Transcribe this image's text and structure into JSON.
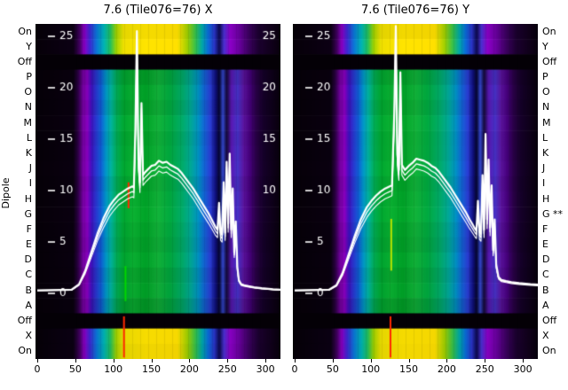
{
  "titles": {
    "left": "7.6 (Tile076=76) X",
    "right": "7.6 (Tile076=76) Y"
  },
  "axis": {
    "ylabel": "Dipole"
  },
  "row_labels_left": [
    "On",
    "Y",
    "Off",
    "P",
    "O",
    "N",
    "M",
    "L",
    "K",
    "J",
    "I",
    "H",
    "G",
    "F",
    "E",
    "D",
    "C",
    "B",
    "A",
    "Off",
    "X",
    "On"
  ],
  "row_labels_right": [
    "On",
    "Y",
    "Off",
    "P",
    "O",
    "N",
    "M",
    "L",
    "K",
    "J",
    "I",
    "H",
    "G **",
    "F",
    "E",
    "D",
    "C",
    "B",
    "A",
    "Off",
    "X",
    "On"
  ],
  "colormap": {
    "body": [
      [
        0,
        "#060008"
      ],
      [
        0.155,
        "#0a0010"
      ],
      [
        0.175,
        "#30004a"
      ],
      [
        0.195,
        "#7a00a8"
      ],
      [
        0.212,
        "#8800c0"
      ],
      [
        0.228,
        "#4010c0"
      ],
      [
        0.248,
        "#2838d0"
      ],
      [
        0.268,
        "#1060d8"
      ],
      [
        0.288,
        "#0098c8"
      ],
      [
        0.308,
        "#00b4a0"
      ],
      [
        0.332,
        "#00ae56"
      ],
      [
        0.362,
        "#00a830"
      ],
      [
        0.4,
        "#0bb232"
      ],
      [
        0.45,
        "#00a428"
      ],
      [
        0.5,
        "#12b43a"
      ],
      [
        0.55,
        "#00aa40"
      ],
      [
        0.6,
        "#00ac6a"
      ],
      [
        0.635,
        "#00a898"
      ],
      [
        0.665,
        "#0092c4"
      ],
      [
        0.69,
        "#1464d8"
      ],
      [
        0.715,
        "#2a3cd4"
      ],
      [
        0.735,
        "#101080"
      ],
      [
        0.75,
        "#060630"
      ],
      [
        0.765,
        "#3448d0"
      ],
      [
        0.78,
        "#140a3c"
      ],
      [
        0.8,
        "#5a18b4"
      ],
      [
        0.825,
        "#4632c8"
      ],
      [
        0.85,
        "#5c14a0"
      ],
      [
        0.875,
        "#46007c"
      ],
      [
        0.9,
        "#2a0048"
      ],
      [
        0.93,
        "#16002a"
      ],
      [
        1,
        "#08000c"
      ]
    ],
    "bright": [
      [
        0,
        "#060008"
      ],
      [
        0.155,
        "#0c0014"
      ],
      [
        0.18,
        "#40005e"
      ],
      [
        0.2,
        "#8c00c8"
      ],
      [
        0.222,
        "#3c28d2"
      ],
      [
        0.25,
        "#0a78d8"
      ],
      [
        0.28,
        "#00b4b4"
      ],
      [
        0.305,
        "#20c060"
      ],
      [
        0.33,
        "#a0d400"
      ],
      [
        0.36,
        "#f0e000"
      ],
      [
        0.45,
        "#ffe400"
      ],
      [
        0.58,
        "#ffe000"
      ],
      [
        0.62,
        "#a0d000"
      ],
      [
        0.655,
        "#30c050"
      ],
      [
        0.68,
        "#00a8a8"
      ],
      [
        0.705,
        "#0a6cd8"
      ],
      [
        0.73,
        "#2a34c8"
      ],
      [
        0.75,
        "#0c0a50"
      ],
      [
        0.77,
        "#4a30d0"
      ],
      [
        0.795,
        "#8c00c8"
      ],
      [
        0.83,
        "#6a00a0"
      ],
      [
        0.87,
        "#3c0060"
      ],
      [
        0.91,
        "#1c0030"
      ],
      [
        1,
        "#08000c"
      ]
    ],
    "off_band": "#040006",
    "trace": "#ffffff"
  },
  "chart_data": [
    {
      "type": "heatmap",
      "title": "7.6 (Tile076=76) X",
      "x_range": [
        0,
        320
      ],
      "x_ticks": [
        0,
        50,
        100,
        150,
        200,
        250,
        300
      ],
      "value_ticks": [
        25,
        20,
        15,
        10,
        5,
        0
      ],
      "value_ticks_right": [
        25,
        20,
        15,
        10
      ],
      "off_rows": [
        2,
        19
      ],
      "bright_rows": [
        0,
        1,
        20,
        21
      ],
      "row_shade": [
        0.04,
        0,
        0,
        0.1,
        0.03,
        0.07,
        0,
        0.05,
        0.02,
        0,
        0.06,
        0.02,
        0,
        0.04,
        0.07,
        0.02,
        0.09,
        0.05,
        0.14,
        0,
        0.03,
        0.06
      ],
      "features": [
        {
          "x": 120,
          "row0": 10.4,
          "row1": 12.1,
          "color": "#ff2800",
          "w": 2
        },
        {
          "x": 116,
          "row0": 15.9,
          "row1": 18.2,
          "color": "#00d800",
          "w": 2
        },
        {
          "x": 114,
          "row0": 19.2,
          "row1": 21.9,
          "color": "#ff2800",
          "w": 2
        }
      ],
      "overlay_line": {
        "points": [
          [
            0,
            0.3
          ],
          [
            45,
            0.35
          ],
          [
            55,
            0.9
          ],
          [
            63,
            2.2
          ],
          [
            71,
            4.0
          ],
          [
            79,
            5.8
          ],
          [
            87,
            7.3
          ],
          [
            95,
            8.5
          ],
          [
            101,
            9.1
          ],
          [
            107,
            9.6
          ],
          [
            113,
            9.9
          ],
          [
            119,
            10.2
          ],
          [
            125,
            10.4
          ],
          [
            127,
            10.3
          ],
          [
            129,
            16.0
          ],
          [
            131,
            25.5
          ],
          [
            133,
            13.0
          ],
          [
            135,
            10.8
          ],
          [
            137,
            18.5
          ],
          [
            139,
            11.5
          ],
          [
            142,
            11.8
          ],
          [
            146,
            12.1
          ],
          [
            150,
            12.4
          ],
          [
            155,
            12.5
          ],
          [
            160,
            12.9
          ],
          [
            165,
            12.7
          ],
          [
            170,
            12.8
          ],
          [
            175,
            12.5
          ],
          [
            180,
            12.3
          ],
          [
            185,
            12.1
          ],
          [
            190,
            11.7
          ],
          [
            195,
            11.2
          ],
          [
            200,
            10.7
          ],
          [
            205,
            10.2
          ],
          [
            210,
            9.6
          ],
          [
            215,
            9.0
          ],
          [
            220,
            8.4
          ],
          [
            225,
            7.8
          ],
          [
            230,
            7.1
          ],
          [
            234,
            6.5
          ],
          [
            237,
            6.2
          ],
          [
            239,
            8.8
          ],
          [
            241,
            5.9
          ],
          [
            243,
            5.7
          ],
          [
            245,
            10.8
          ],
          [
            247,
            5.9
          ],
          [
            249,
            12.8
          ],
          [
            251,
            6.8
          ],
          [
            253,
            13.6
          ],
          [
            255,
            6.2
          ],
          [
            257,
            10.2
          ],
          [
            259,
            4.0
          ],
          [
            261,
            7.0
          ],
          [
            263,
            2.6
          ],
          [
            265,
            1.3
          ],
          [
            268,
            0.9
          ],
          [
            272,
            0.8
          ],
          [
            278,
            0.7
          ],
          [
            285,
            0.6
          ],
          [
            295,
            0.5
          ],
          [
            310,
            0.4
          ],
          [
            320,
            0.35
          ]
        ]
      }
    },
    {
      "type": "heatmap",
      "title": "7.6 (Tile076=76) Y",
      "x_range": [
        0,
        320
      ],
      "x_ticks": [
        0,
        50,
        100,
        150,
        200,
        250,
        300
      ],
      "value_ticks": [
        25,
        20,
        15,
        10,
        5,
        0
      ],
      "value_ticks_right": [],
      "off_rows": [
        2,
        19
      ],
      "bright_rows": [
        0,
        1,
        20,
        21
      ],
      "row_shade": [
        0.05,
        0,
        0,
        0.09,
        0.02,
        0.06,
        0,
        0.04,
        0.03,
        0,
        0.05,
        0.02,
        0,
        0.05,
        0.08,
        0.02,
        0.08,
        0.04,
        0.13,
        0,
        0.04,
        0.05
      ],
      "features": [
        {
          "x": 127,
          "row0": 12.8,
          "row1": 16.2,
          "color": "#b8e400",
          "w": 2
        },
        {
          "x": 126,
          "row0": 19.2,
          "row1": 21.9,
          "color": "#ff2800",
          "w": 2
        }
      ],
      "overlay_line": {
        "points": [
          [
            0,
            0.3
          ],
          [
            45,
            0.35
          ],
          [
            55,
            0.8
          ],
          [
            63,
            2.0
          ],
          [
            71,
            3.8
          ],
          [
            79,
            5.6
          ],
          [
            87,
            7.2
          ],
          [
            95,
            8.4
          ],
          [
            101,
            9.0
          ],
          [
            107,
            9.5
          ],
          [
            113,
            9.9
          ],
          [
            119,
            10.2
          ],
          [
            125,
            10.4
          ],
          [
            128,
            10.5
          ],
          [
            131,
            17.5
          ],
          [
            133,
            26.0
          ],
          [
            135,
            13.5
          ],
          [
            137,
            12.0
          ],
          [
            139,
            21.5
          ],
          [
            141,
            12.5
          ],
          [
            145,
            12.0
          ],
          [
            150,
            12.4
          ],
          [
            155,
            12.7
          ],
          [
            160,
            13.1
          ],
          [
            165,
            13.0
          ],
          [
            170,
            12.9
          ],
          [
            175,
            12.7
          ],
          [
            180,
            12.4
          ],
          [
            185,
            12.2
          ],
          [
            190,
            11.8
          ],
          [
            195,
            11.3
          ],
          [
            200,
            10.8
          ],
          [
            205,
            10.3
          ],
          [
            210,
            9.7
          ],
          [
            215,
            9.1
          ],
          [
            220,
            8.5
          ],
          [
            225,
            7.9
          ],
          [
            230,
            7.2
          ],
          [
            234,
            6.7
          ],
          [
            237,
            6.3
          ],
          [
            239,
            6.1
          ],
          [
            241,
            9.0
          ],
          [
            243,
            6.0
          ],
          [
            245,
            5.8
          ],
          [
            247,
            11.5
          ],
          [
            249,
            6.2
          ],
          [
            251,
            15.5
          ],
          [
            253,
            7.2
          ],
          [
            255,
            13.0
          ],
          [
            257,
            6.4
          ],
          [
            259,
            10.5
          ],
          [
            261,
            4.2
          ],
          [
            263,
            7.2
          ],
          [
            265,
            2.8
          ],
          [
            268,
            1.6
          ],
          [
            272,
            1.3
          ],
          [
            278,
            1.2
          ],
          [
            285,
            1.1
          ],
          [
            295,
            1.0
          ],
          [
            310,
            0.9
          ],
          [
            320,
            0.85
          ]
        ]
      }
    }
  ]
}
